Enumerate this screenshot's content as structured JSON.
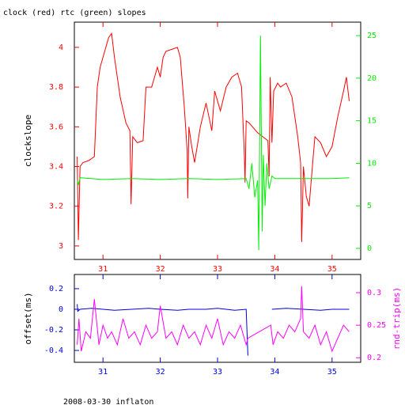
{
  "chart_data": [
    {
      "type": "line",
      "title": "clock (red) rtc (green) slopes",
      "ylabel": "clockslope",
      "xlim": [
        30.5,
        35.5
      ],
      "xticks": [
        31,
        32,
        33,
        34,
        35
      ],
      "ylim": [
        2.932,
        4.127
      ],
      "yticks": [
        3,
        3.2,
        3.4,
        3.6,
        3.8,
        4
      ],
      "y2lim": [
        -1.3,
        26.58
      ],
      "y2ticks": [
        0,
        5,
        10,
        15,
        20,
        25
      ],
      "series": [
        {
          "name": "clock",
          "color": "#ff0000",
          "x": [
            30.55,
            30.57,
            30.6,
            30.65,
            30.75,
            30.85,
            30.9,
            30.95,
            31.0,
            31.1,
            31.15,
            31.2,
            31.3,
            31.4,
            31.47,
            31.49,
            31.52,
            31.6,
            31.7,
            31.75,
            31.85,
            31.95,
            32.0,
            32.05,
            32.1,
            32.2,
            32.3,
            32.35,
            32.42,
            32.47,
            32.48,
            32.5,
            32.55,
            32.6,
            32.7,
            32.8,
            32.9,
            32.95,
            33.05,
            33.15,
            33.25,
            33.35,
            33.42,
            33.47,
            33.48,
            33.5,
            33.55,
            33.7,
            33.88,
            33.9,
            33.92,
            33.95,
            33.98,
            34.05,
            34.1,
            34.2,
            34.3,
            34.4,
            34.45,
            34.47,
            34.5,
            34.55,
            34.6,
            34.65,
            34.7,
            34.8,
            34.9,
            35.0,
            35.1,
            35.2,
            35.25,
            35.3
          ],
          "values": [
            3.45,
            3.03,
            3.4,
            3.42,
            3.43,
            3.45,
            3.8,
            3.9,
            3.95,
            4.05,
            4.07,
            3.95,
            3.75,
            3.62,
            3.58,
            3.21,
            3.55,
            3.52,
            3.53,
            3.8,
            3.8,
            3.9,
            3.85,
            3.95,
            3.98,
            3.99,
            4.0,
            3.95,
            3.7,
            3.48,
            3.24,
            3.6,
            3.5,
            3.42,
            3.6,
            3.72,
            3.58,
            3.78,
            3.68,
            3.8,
            3.85,
            3.87,
            3.8,
            3.45,
            3.32,
            3.63,
            3.62,
            3.57,
            3.53,
            3.35,
            3.85,
            3.52,
            3.78,
            3.82,
            3.8,
            3.82,
            3.75,
            3.55,
            3.42,
            3.02,
            3.4,
            3.25,
            3.2,
            3.38,
            3.55,
            3.52,
            3.45,
            3.5,
            3.65,
            3.78,
            3.85,
            3.73
          ]
        },
        {
          "name": "rtc",
          "color": "#00ee00",
          "axis": "y2",
          "x": [
            30.55,
            30.57,
            30.6,
            31.0,
            31.5,
            32.0,
            32.5,
            33.0,
            33.5,
            33.55,
            33.6,
            33.65,
            33.7,
            33.72,
            33.75,
            33.78,
            33.8,
            33.83,
            33.86,
            33.9,
            33.95,
            34.0,
            34.5,
            35.0,
            35.3
          ],
          "values": [
            8,
            7.5,
            8.3,
            8.1,
            8.2,
            8.1,
            8.2,
            8.1,
            8.2,
            7,
            10,
            6,
            8,
            -0.2,
            25,
            2,
            11,
            5,
            10,
            7,
            8.5,
            8.2,
            8.2,
            8.2,
            8.3
          ]
        }
      ]
    },
    {
      "type": "line",
      "ylabel": "offset(ms)",
      "y2label": "rnd-trip(ms)",
      "xlim": [
        30.5,
        35.5
      ],
      "xticks": [
        31,
        32,
        33,
        34,
        35
      ],
      "ylim": [
        -0.515,
        0.338
      ],
      "yticks": [
        -0.4,
        -0.2,
        0,
        0.2
      ],
      "y2lim": [
        0.193,
        0.328
      ],
      "y2ticks": [
        0.2,
        0.25,
        0.3
      ],
      "series": [
        {
          "name": "offset",
          "color": "#0000dd",
          "x": [
            30.55,
            30.56,
            30.6,
            30.8,
            31.0,
            31.2,
            31.5,
            31.8,
            32.0,
            32.3,
            32.5,
            32.8,
            33.0,
            33.3,
            33.5,
            33.53,
            33.7,
            33.95,
            34.2,
            34.5,
            34.8,
            35.0,
            35.3
          ],
          "values": [
            0.05,
            -0.02,
            0.0,
            0.01,
            0.0,
            -0.01,
            0.0,
            0.01,
            0.0,
            -0.01,
            0.0,
            0.0,
            0.01,
            -0.01,
            0.0,
            -0.45,
            null,
            0.0,
            0.01,
            0.0,
            -0.01,
            0.0,
            0.0
          ]
        },
        {
          "name": "rnd-trip",
          "color": "#ff00ff",
          "axis": "y2",
          "x": [
            30.55,
            30.58,
            30.62,
            30.7,
            30.78,
            30.85,
            30.93,
            31.0,
            31.08,
            31.15,
            31.25,
            31.35,
            31.45,
            31.55,
            31.65,
            31.75,
            31.85,
            31.95,
            32.0,
            32.1,
            32.2,
            32.3,
            32.4,
            32.5,
            32.6,
            32.7,
            32.8,
            32.9,
            33.0,
            33.1,
            33.2,
            33.3,
            33.4,
            33.5,
            33.53,
            33.93,
            33.97,
            34.05,
            34.15,
            34.25,
            34.35,
            34.45,
            34.47,
            34.5,
            34.6,
            34.7,
            34.8,
            34.9,
            35.0,
            35.1,
            35.2,
            35.3
          ],
          "values": [
            0.22,
            0.26,
            0.21,
            0.24,
            0.23,
            0.29,
            0.22,
            0.25,
            0.23,
            0.24,
            0.22,
            0.26,
            0.23,
            0.24,
            0.22,
            0.25,
            0.23,
            0.24,
            0.28,
            0.23,
            0.24,
            0.22,
            0.25,
            0.23,
            0.24,
            0.22,
            0.25,
            0.23,
            0.26,
            0.22,
            0.24,
            0.23,
            0.25,
            0.22,
            0.23,
            0.25,
            0.22,
            0.24,
            0.23,
            0.25,
            0.24,
            0.26,
            0.31,
            0.24,
            0.23,
            0.25,
            0.22,
            0.24,
            0.21,
            0.23,
            0.25,
            0.24
          ]
        }
      ]
    }
  ],
  "footer": "2008-03-30 inflaton"
}
